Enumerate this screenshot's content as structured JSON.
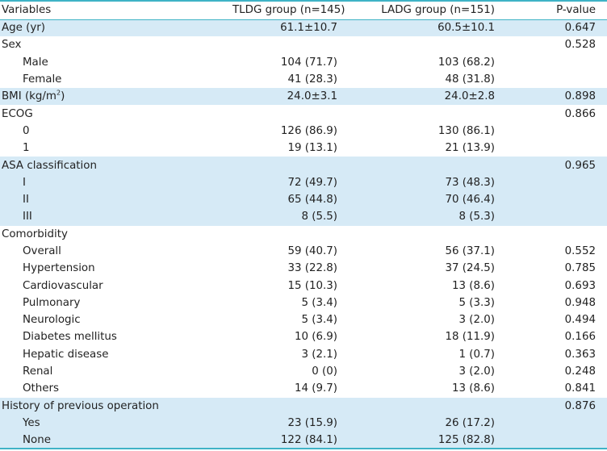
{
  "header": {
    "variables": "Variables",
    "tldg": "TLDG group (n=145)",
    "ladg": "LADG group (n=151)",
    "pvalue": "P-value"
  },
  "rows": [
    {
      "label": "Age (yr)",
      "tldg": "61.1±10.7",
      "ladg": "60.5±10.1",
      "p": "0.647"
    },
    {
      "label": "Sex",
      "tldg": "",
      "ladg": "",
      "p": "0.528"
    },
    {
      "label": "Male",
      "tldg": "104 (71.7)",
      "ladg": "103 (68.2)",
      "p": ""
    },
    {
      "label": "Female",
      "tldg": "41 (28.3)",
      "ladg": "48 (31.8)",
      "p": ""
    },
    {
      "label": "BMI (kg/m",
      "sup": "2",
      "label_end": ")",
      "tldg": "24.0±3.1",
      "ladg": "24.0±2.8",
      "p": "0.898"
    },
    {
      "label": "ECOG",
      "tldg": "",
      "ladg": "",
      "p": "0.866"
    },
    {
      "label": "0",
      "tldg": "126 (86.9)",
      "ladg": "130 (86.1)",
      "p": ""
    },
    {
      "label": "1",
      "tldg": "19 (13.1)",
      "ladg": "21 (13.9)",
      "p": ""
    },
    {
      "label": "ASA classification",
      "tldg": "",
      "ladg": "",
      "p": "0.965"
    },
    {
      "label": "I",
      "tldg": "72 (49.7)",
      "ladg": "73 (48.3)",
      "p": ""
    },
    {
      "label": "II",
      "tldg": "65 (44.8)",
      "ladg": "70 (46.4)",
      "p": ""
    },
    {
      "label": "III",
      "tldg": "8 (5.5)",
      "ladg": "8 (5.3)",
      "p": ""
    },
    {
      "label": "Comorbidity",
      "tldg": "",
      "ladg": "",
      "p": ""
    },
    {
      "label": "Overall",
      "tldg": "59 (40.7)",
      "ladg": "56 (37.1)",
      "p": "0.552"
    },
    {
      "label": "Hypertension",
      "tldg": "33 (22.8)",
      "ladg": "37 (24.5)",
      "p": "0.785"
    },
    {
      "label": "Cardiovascular",
      "tldg": "15 (10.3)",
      "ladg": "13 (8.6)",
      "p": "0.693"
    },
    {
      "label": "Pulmonary",
      "tldg": "5 (3.4)",
      "ladg": "5 (3.3)",
      "p": "0.948"
    },
    {
      "label": "Neurologic",
      "tldg": "5 (3.4)",
      "ladg": "3 (2.0)",
      "p": "0.494"
    },
    {
      "label": "Diabetes mellitus",
      "tldg": "10 (6.9)",
      "ladg": "18 (11.9)",
      "p": "0.166"
    },
    {
      "label": "Hepatic disease",
      "tldg": "3 (2.1)",
      "ladg": "1 (0.7)",
      "p": "0.363"
    },
    {
      "label": "Renal",
      "tldg": "0 (0)",
      "ladg": "3 (2.0)",
      "p": "0.248"
    },
    {
      "label": "Others",
      "tldg": "14 (9.7)",
      "ladg": "13 (8.6)",
      "p": "0.841"
    },
    {
      "label": "History of previous operation",
      "tldg": "",
      "ladg": "",
      "p": "0.876"
    },
    {
      "label": "Yes",
      "tldg": "23 (15.9)",
      "ladg": "26 (17.2)",
      "p": ""
    },
    {
      "label": "None",
      "tldg": "122 (84.1)",
      "ladg": "125 (82.8)",
      "p": ""
    }
  ],
  "colors": {
    "rule": "#3fb3c6",
    "shade": "#d6eaf6",
    "text": "#222222"
  }
}
